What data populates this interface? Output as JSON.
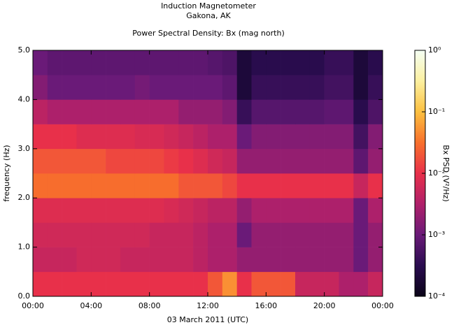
{
  "chart_data": {
    "type": "spectrogram",
    "title": "Induction Magnetometer",
    "subtitle": "Gakona, AK",
    "plot_title": "Power Spectral Density: Bx (mag north)",
    "x_label": "03 March 2011 (UTC)",
    "y_label": "frequency (Hz)",
    "colorbar_label": "Bx PSD (V²/Hz)",
    "xbins": [
      0,
      1,
      2,
      3,
      4,
      5,
      6,
      7,
      8,
      9,
      10,
      11,
      12,
      13,
      14,
      15,
      16,
      17,
      18,
      19,
      20,
      21,
      22,
      23,
      24
    ],
    "ybins": [
      0,
      0.5,
      1,
      1.5,
      2,
      2.5,
      3,
      3.5,
      4,
      4.5,
      5
    ],
    "z": [
      [
        0.01,
        0.01,
        0.01,
        0.01,
        0.01,
        0.01,
        0.01,
        0.01,
        0.01,
        0.01,
        0.01,
        0.01,
        0.02,
        0.05,
        0.01,
        0.02,
        0.02,
        0.02,
        0.005,
        0.005,
        0.005,
        0.003,
        0.003,
        0.005
      ],
      [
        0.005,
        0.005,
        0.005,
        0.006,
        0.006,
        0.006,
        0.005,
        0.005,
        0.005,
        0.005,
        0.005,
        0.004,
        0.003,
        0.003,
        0.002,
        0.002,
        0.002,
        0.002,
        0.002,
        0.002,
        0.002,
        0.002,
        0.001,
        0.002
      ],
      [
        0.006,
        0.006,
        0.006,
        0.006,
        0.006,
        0.006,
        0.006,
        0.006,
        0.005,
        0.005,
        0.005,
        0.004,
        0.003,
        0.003,
        0.001,
        0.002,
        0.002,
        0.002,
        0.002,
        0.002,
        0.002,
        0.002,
        0.001,
        0.002
      ],
      [
        0.008,
        0.008,
        0.008,
        0.008,
        0.008,
        0.008,
        0.008,
        0.008,
        0.008,
        0.007,
        0.006,
        0.005,
        0.004,
        0.004,
        0.002,
        0.003,
        0.003,
        0.003,
        0.003,
        0.003,
        0.003,
        0.003,
        0.001,
        0.003
      ],
      [
        0.03,
        0.03,
        0.03,
        0.03,
        0.03,
        0.03,
        0.03,
        0.03,
        0.03,
        0.03,
        0.02,
        0.02,
        0.02,
        0.015,
        0.01,
        0.01,
        0.01,
        0.01,
        0.01,
        0.01,
        0.01,
        0.01,
        0.005,
        0.01
      ],
      [
        0.02,
        0.02,
        0.02,
        0.02,
        0.02,
        0.015,
        0.015,
        0.015,
        0.015,
        0.012,
        0.01,
        0.008,
        0.006,
        0.005,
        0.002,
        0.002,
        0.002,
        0.002,
        0.002,
        0.002,
        0.002,
        0.002,
        0.0008,
        0.002
      ],
      [
        0.01,
        0.01,
        0.01,
        0.008,
        0.008,
        0.008,
        0.008,
        0.007,
        0.007,
        0.006,
        0.005,
        0.004,
        0.003,
        0.003,
        0.001,
        0.0015,
        0.0015,
        0.0015,
        0.0015,
        0.0015,
        0.0015,
        0.0015,
        0.0005,
        0.0015
      ],
      [
        0.004,
        0.003,
        0.003,
        0.003,
        0.003,
        0.003,
        0.003,
        0.003,
        0.003,
        0.003,
        0.002,
        0.002,
        0.002,
        0.0015,
        0.0004,
        0.0007,
        0.0007,
        0.0007,
        0.0007,
        0.0007,
        0.0008,
        0.0008,
        0.0003,
        0.0006
      ],
      [
        0.0015,
        0.001,
        0.001,
        0.001,
        0.001,
        0.001,
        0.001,
        0.0012,
        0.001,
        0.001,
        0.001,
        0.001,
        0.001,
        0.0008,
        0.0002,
        0.0004,
        0.0004,
        0.0004,
        0.0004,
        0.0004,
        0.0005,
        0.0005,
        0.0002,
        0.0004
      ],
      [
        0.001,
        0.0008,
        0.0008,
        0.0008,
        0.0008,
        0.0008,
        0.0008,
        0.0008,
        0.0008,
        0.0008,
        0.0008,
        0.0008,
        0.0007,
        0.0006,
        0.0002,
        0.0003,
        0.0003,
        0.0003,
        0.0003,
        0.0003,
        0.0004,
        0.0004,
        0.0002,
        0.0003
      ]
    ],
    "xlim": [
      0,
      24
    ],
    "xticks": [
      {
        "value": 0,
        "label": "00:00"
      },
      {
        "value": 4,
        "label": "04:00"
      },
      {
        "value": 8,
        "label": "08:00"
      },
      {
        "value": 12,
        "label": "12:00"
      },
      {
        "value": 16,
        "label": "16:00"
      },
      {
        "value": 20,
        "label": "20:00"
      },
      {
        "value": 24,
        "label": "00:00"
      }
    ],
    "ylim": [
      0,
      5
    ],
    "yticks": [
      {
        "value": 0,
        "label": "0.0"
      },
      {
        "value": 1,
        "label": "1.0"
      },
      {
        "value": 2,
        "label": "2.0"
      },
      {
        "value": 3,
        "label": "3.0"
      },
      {
        "value": 4,
        "label": "4.0"
      },
      {
        "value": 5,
        "label": "5.0"
      }
    ],
    "zlim": [
      0.0001,
      1
    ],
    "zscale": "log",
    "zticks": [
      {
        "value": 0.0001,
        "label": "10⁻⁴"
      },
      {
        "value": 0.001,
        "label": "10⁻³"
      },
      {
        "value": 0.01,
        "label": "10⁻²"
      },
      {
        "value": 0.1,
        "label": "10⁻¹"
      },
      {
        "value": 1,
        "label": "10⁰"
      }
    ],
    "colormap": [
      "#0a0418",
      "#2a0c50",
      "#6a1a78",
      "#b0206a",
      "#e8304a",
      "#f8702c",
      "#fcc040",
      "#fcf0a0",
      "#f4fff4"
    ]
  }
}
